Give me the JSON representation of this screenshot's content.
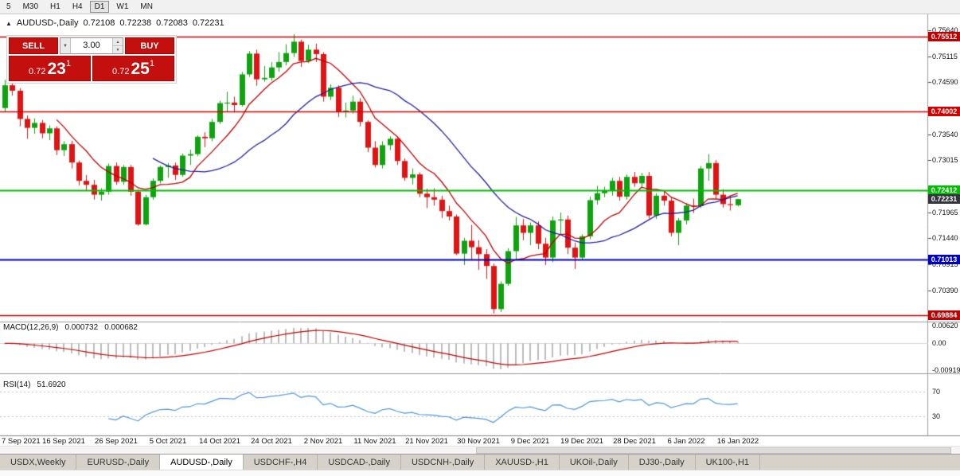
{
  "toolbar": {
    "timeframes": [
      {
        "label": "5",
        "active": false
      },
      {
        "label": "M30",
        "active": false
      },
      {
        "label": "H1",
        "active": false
      },
      {
        "label": "H4",
        "active": false
      },
      {
        "label": "D1",
        "active": true
      },
      {
        "label": "W1",
        "active": false
      },
      {
        "label": "MN",
        "active": false
      }
    ]
  },
  "header": {
    "collapse_icon": "▲",
    "symbol": "AUDUSD-,Daily",
    "open": "0.72108",
    "high": "0.72238",
    "low": "0.72083",
    "close": "0.72231"
  },
  "trade_panel": {
    "sell_label": "SELL",
    "buy_label": "BUY",
    "lot_value": "3.00",
    "dropdown_icon": "▼",
    "spinner_up_icon": "▲",
    "spinner_down_icon": "▼",
    "sell_price": {
      "small": "0.72",
      "big": "23",
      "sup": "1"
    },
    "buy_price": {
      "small": "0.72",
      "big": "25",
      "sup": "1"
    }
  },
  "price_axis": {
    "ticks": [
      "0.75640",
      "0.75115",
      "0.74590",
      "0.73540",
      "0.73015",
      "0.71965",
      "0.71440",
      "0.70915",
      "0.70390"
    ],
    "current": {
      "label": "0.72231",
      "value": 0.72231,
      "color": "#34343E"
    }
  },
  "hlines": [
    {
      "label": "0.75512",
      "value": 0.75512,
      "color": "#C00000",
      "width": 1.6
    },
    {
      "label": "0.74002",
      "value": 0.74002,
      "color": "#D40000",
      "width": 1.6
    },
    {
      "label": "0.72412",
      "value": 0.72412,
      "color": "#00BE00",
      "width": 2
    },
    {
      "label": "0.71013",
      "value": 0.71013,
      "color": "#0000C0",
      "width": 2
    },
    {
      "label": "0.69884",
      "value": 0.69884,
      "color": "#C00000",
      "width": 1.6
    }
  ],
  "indicators": {
    "macd": {
      "title": "MACD(12,26,9)",
      "value1": "0.000732",
      "value2": "0.000682",
      "axis_top": "0.00620",
      "axis_zero": "0.00",
      "axis_bottom": "-0.00919",
      "fast": 12,
      "slow": 26,
      "signal": 9,
      "histogram_color": "#BCBCBC",
      "signal_color": "#C00000"
    },
    "rsi": {
      "title": "RSI(14)",
      "value": "51.6920",
      "period": 14,
      "levels": [
        {
          "label": "70",
          "value": 70
        },
        {
          "label": "30",
          "value": 30
        }
      ],
      "color": "#4E96D9"
    }
  },
  "time_axis": {
    "labels": [
      {
        "i": 1,
        "t": "7 Sep 2021"
      },
      {
        "i": 8,
        "t": "16 Sep 2021"
      },
      {
        "i": 15,
        "t": "26 Sep 2021"
      },
      {
        "i": 22,
        "t": "5 Oct 2021"
      },
      {
        "i": 29,
        "t": "14 Oct 2021"
      },
      {
        "i": 36,
        "t": "24 Oct 2021"
      },
      {
        "i": 43,
        "t": "2 Nov 2021"
      },
      {
        "i": 50,
        "t": "11 Nov 2021"
      },
      {
        "i": 57,
        "t": "21 Nov 2021"
      },
      {
        "i": 64,
        "t": "30 Nov 2021"
      },
      {
        "i": 71,
        "t": "9 Dec 2021"
      },
      {
        "i": 78,
        "t": "19 Dec 2021"
      },
      {
        "i": 85,
        "t": "28 Dec 2021"
      },
      {
        "i": 92,
        "t": "6 Jan 2022"
      },
      {
        "i": 99,
        "t": "16 Jan 2022"
      }
    ]
  },
  "tabs": [
    {
      "label": "USDX,Weekly",
      "active": false
    },
    {
      "label": "EURUSD-,Daily",
      "active": false
    },
    {
      "label": "AUDUSD-,Daily",
      "active": true
    },
    {
      "label": "USDCHF-,H4",
      "active": false
    },
    {
      "label": "USDCAD-,Daily",
      "active": false
    },
    {
      "label": "USDCNH-,Daily",
      "active": false
    },
    {
      "label": "XAUUSD-,H1",
      "active": false
    },
    {
      "label": "UKOil-,Daily",
      "active": false
    },
    {
      "label": "DJ30-,Daily",
      "active": false
    },
    {
      "label": "UK100-,H1",
      "active": false
    }
  ],
  "chart_data": {
    "type": "candlestick",
    "symbol": "AUDUSD",
    "timeframe": "Daily",
    "ylim": [
      0.6979,
      0.7577
    ],
    "up_color": "#0FA30F",
    "down_color": "#E01414",
    "moving_averages": [
      {
        "name": "ma-fast",
        "period": 8,
        "color": "#C00000"
      },
      {
        "name": "ma-slow",
        "period": 21,
        "color": "#1F1FA0"
      }
    ],
    "ohlc": [
      [
        0.7407,
        0.7464,
        0.74,
        0.7453
      ],
      [
        0.7453,
        0.7462,
        0.7432,
        0.7442
      ],
      [
        0.7442,
        0.7447,
        0.737,
        0.7385
      ],
      [
        0.7385,
        0.7392,
        0.7345,
        0.7367
      ],
      [
        0.7367,
        0.7386,
        0.7355,
        0.7377
      ],
      [
        0.7377,
        0.7383,
        0.7346,
        0.7356
      ],
      [
        0.7356,
        0.7372,
        0.7342,
        0.7366
      ],
      [
        0.7366,
        0.737,
        0.7312,
        0.7322
      ],
      [
        0.7322,
        0.734,
        0.731,
        0.7334
      ],
      [
        0.7334,
        0.7341,
        0.7285,
        0.7297
      ],
      [
        0.7297,
        0.7301,
        0.7251,
        0.726
      ],
      [
        0.726,
        0.7272,
        0.724,
        0.7252
      ],
      [
        0.7252,
        0.7262,
        0.7222,
        0.7232
      ],
      [
        0.7232,
        0.7245,
        0.722,
        0.7238
      ],
      [
        0.7238,
        0.7295,
        0.7232,
        0.729
      ],
      [
        0.729,
        0.7297,
        0.7252,
        0.7258
      ],
      [
        0.7258,
        0.7292,
        0.7252,
        0.7288
      ],
      [
        0.7288,
        0.7292,
        0.723,
        0.7238
      ],
      [
        0.7238,
        0.7242,
        0.7169,
        0.7172
      ],
      [
        0.7172,
        0.7232,
        0.717,
        0.7227
      ],
      [
        0.7227,
        0.7265,
        0.7222,
        0.726
      ],
      [
        0.726,
        0.7291,
        0.7255,
        0.7288
      ],
      [
        0.7288,
        0.7296,
        0.7266,
        0.7291
      ],
      [
        0.7291,
        0.7297,
        0.7262,
        0.7272
      ],
      [
        0.7272,
        0.7315,
        0.7268,
        0.7311
      ],
      [
        0.7311,
        0.7323,
        0.7292,
        0.7314
      ],
      [
        0.7314,
        0.7352,
        0.731,
        0.7349
      ],
      [
        0.7349,
        0.7358,
        0.7328,
        0.7346
      ],
      [
        0.7346,
        0.7385,
        0.734,
        0.7379
      ],
      [
        0.7379,
        0.7422,
        0.7375,
        0.7417
      ],
      [
        0.7417,
        0.744,
        0.74,
        0.7418
      ],
      [
        0.7418,
        0.743,
        0.7398,
        0.7413
      ],
      [
        0.7413,
        0.748,
        0.741,
        0.7475
      ],
      [
        0.7475,
        0.7522,
        0.747,
        0.7517
      ],
      [
        0.7517,
        0.7525,
        0.7452,
        0.7465
      ],
      [
        0.7465,
        0.7492,
        0.746,
        0.7468
      ],
      [
        0.7468,
        0.75,
        0.7462,
        0.7489
      ],
      [
        0.7489,
        0.752,
        0.748,
        0.75
      ],
      [
        0.75,
        0.7536,
        0.7493,
        0.7518
      ],
      [
        0.7518,
        0.7556,
        0.751,
        0.7541
      ],
      [
        0.7541,
        0.7545,
        0.749,
        0.7502
      ],
      [
        0.7502,
        0.7535,
        0.7498,
        0.7525
      ],
      [
        0.7525,
        0.7537,
        0.75,
        0.7516
      ],
      [
        0.7516,
        0.752,
        0.742,
        0.743
      ],
      [
        0.743,
        0.7455,
        0.7423,
        0.7448
      ],
      [
        0.7448,
        0.7453,
        0.7389,
        0.7399
      ],
      [
        0.7399,
        0.7418,
        0.7388,
        0.7402
      ],
      [
        0.7402,
        0.7432,
        0.7396,
        0.742
      ],
      [
        0.742,
        0.7427,
        0.737,
        0.7379
      ],
      [
        0.7379,
        0.7382,
        0.7318,
        0.7327
      ],
      [
        0.7327,
        0.734,
        0.7287,
        0.7292
      ],
      [
        0.7292,
        0.734,
        0.7285,
        0.7332
      ],
      [
        0.7332,
        0.735,
        0.7322,
        0.7345
      ],
      [
        0.7345,
        0.7349,
        0.7292,
        0.73
      ],
      [
        0.73,
        0.7305,
        0.726,
        0.7266
      ],
      [
        0.7266,
        0.7285,
        0.7253,
        0.7273
      ],
      [
        0.7273,
        0.7277,
        0.7227,
        0.7234
      ],
      [
        0.7234,
        0.7244,
        0.7205,
        0.7227
      ],
      [
        0.7227,
        0.7245,
        0.721,
        0.7222
      ],
      [
        0.7222,
        0.723,
        0.7185,
        0.7199
      ],
      [
        0.7199,
        0.721,
        0.718,
        0.7188
      ],
      [
        0.7188,
        0.7192,
        0.711,
        0.7113
      ],
      [
        0.7113,
        0.7145,
        0.709,
        0.7139
      ],
      [
        0.7139,
        0.7171,
        0.71,
        0.7126
      ],
      [
        0.7126,
        0.714,
        0.708,
        0.7112
      ],
      [
        0.7112,
        0.7122,
        0.7062,
        0.7088
      ],
      [
        0.7088,
        0.7093,
        0.6992,
        0.7001
      ],
      [
        0.7001,
        0.7057,
        0.6995,
        0.7052
      ],
      [
        0.7052,
        0.7124,
        0.7048,
        0.7118
      ],
      [
        0.7118,
        0.7187,
        0.71,
        0.717
      ],
      [
        0.717,
        0.7183,
        0.714,
        0.7155
      ],
      [
        0.7155,
        0.7176,
        0.713,
        0.717
      ],
      [
        0.717,
        0.7178,
        0.7122,
        0.7133
      ],
      [
        0.7133,
        0.7145,
        0.709,
        0.7105
      ],
      [
        0.7105,
        0.7188,
        0.7096,
        0.718
      ],
      [
        0.718,
        0.7196,
        0.7152,
        0.7182
      ],
      [
        0.7182,
        0.719,
        0.7112,
        0.7125
      ],
      [
        0.7125,
        0.7135,
        0.7082,
        0.7105
      ],
      [
        0.7105,
        0.7152,
        0.71,
        0.7148
      ],
      [
        0.7148,
        0.7228,
        0.7142,
        0.7221
      ],
      [
        0.7221,
        0.725,
        0.7212,
        0.7235
      ],
      [
        0.7235,
        0.7248,
        0.7227,
        0.724
      ],
      [
        0.724,
        0.7266,
        0.723,
        0.726
      ],
      [
        0.726,
        0.7268,
        0.722,
        0.7228
      ],
      [
        0.7228,
        0.7273,
        0.7222,
        0.7268
      ],
      [
        0.7268,
        0.7278,
        0.7248,
        0.7255
      ],
      [
        0.7255,
        0.7276,
        0.7245,
        0.727
      ],
      [
        0.727,
        0.7278,
        0.7184,
        0.719
      ],
      [
        0.719,
        0.7235,
        0.7183,
        0.723
      ],
      [
        0.723,
        0.724,
        0.721,
        0.722
      ],
      [
        0.722,
        0.7226,
        0.7148,
        0.7155
      ],
      [
        0.7155,
        0.7185,
        0.713,
        0.718
      ],
      [
        0.718,
        0.7215,
        0.7172,
        0.721
      ],
      [
        0.721,
        0.7224,
        0.7195,
        0.7209
      ],
      [
        0.7209,
        0.729,
        0.7205,
        0.7285
      ],
      [
        0.7285,
        0.7314,
        0.726,
        0.7296
      ],
      [
        0.7296,
        0.7302,
        0.7224,
        0.7232
      ],
      [
        0.7232,
        0.7243,
        0.7206,
        0.7213
      ],
      [
        0.7213,
        0.723,
        0.72,
        0.7211
      ],
      [
        0.72108,
        0.72238,
        0.72083,
        0.72231
      ]
    ]
  }
}
